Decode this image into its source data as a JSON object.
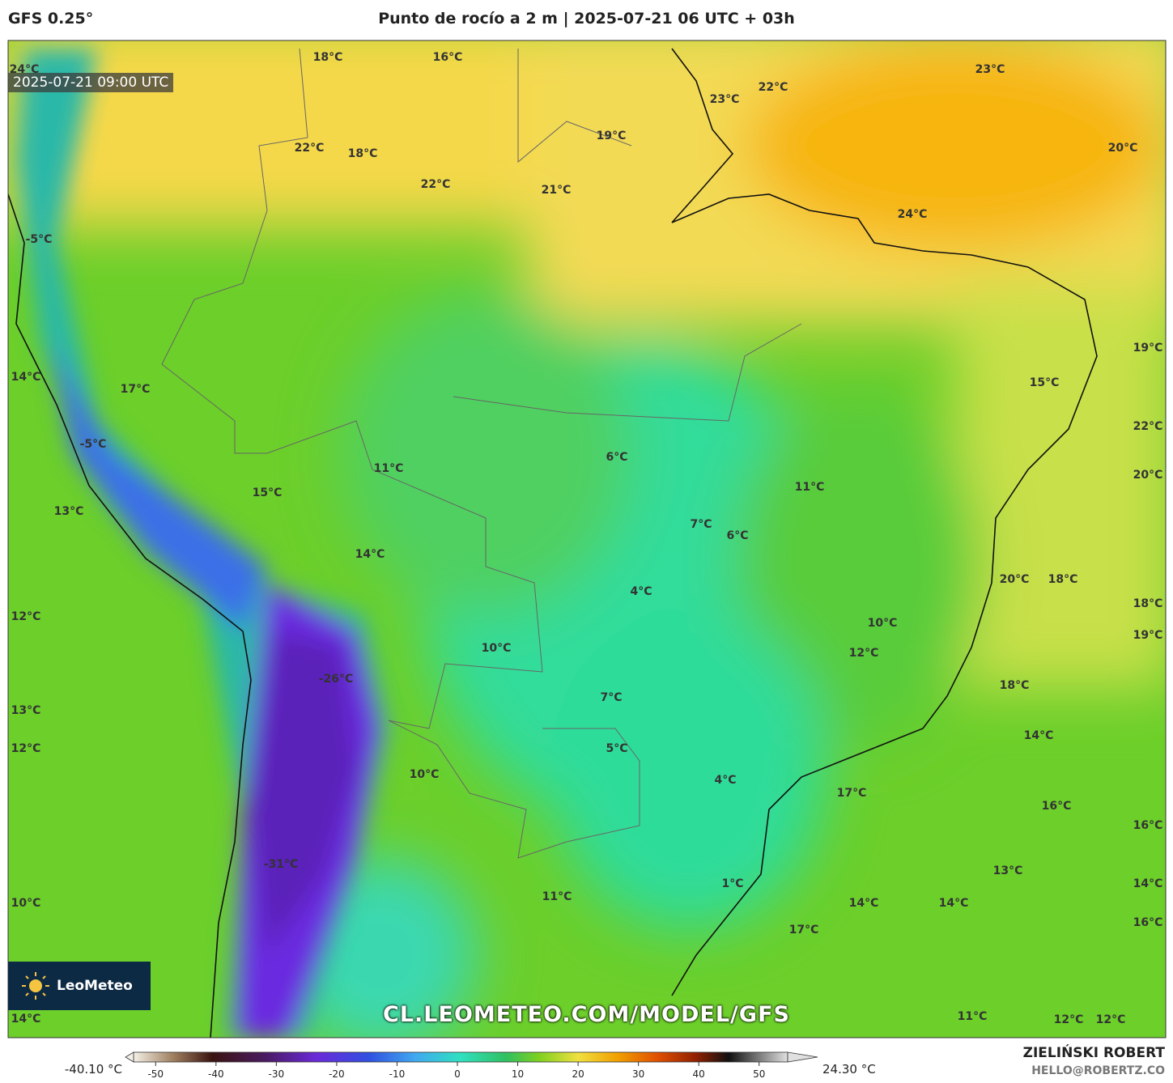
{
  "header": {
    "model": "GFS 0.25°",
    "title": "Punto de rocío a 2 m | 2025-07-21 06 UTC + 03h"
  },
  "timestamp": "2025-07-21 09:00 UTC",
  "logo": "LeoMeteo",
  "watermark": "CL.LEOMETEO.COM/MODEL/GFS",
  "map_labels": [
    "24°C",
    "18°C",
    "16°C",
    "23°C",
    "22°C",
    "23°C",
    "20°C",
    "19°C",
    "22°C",
    "18°C",
    "22°C",
    "21°C",
    "24°C",
    "-5°C",
    "19°C",
    "14°C",
    "17°C",
    "15°C",
    "22°C",
    "-5°C",
    "6°C",
    "11°C",
    "20°C",
    "11°C",
    "15°C",
    "13°C",
    "7°C",
    "6°C",
    "14°C",
    "4°C",
    "20°C",
    "18°C",
    "18°C",
    "12°C",
    "10°C",
    "19°C",
    "12°C",
    "10°C",
    "-26°C",
    "18°C",
    "7°C",
    "13°C",
    "14°C",
    "12°C",
    "5°C",
    "4°C",
    "10°C",
    "17°C",
    "16°C",
    "16°C",
    "-31°C",
    "13°C",
    "1°C",
    "14°C",
    "11°C",
    "10°C",
    "14°C",
    "14°C",
    "16°C",
    "17°C",
    "14°C",
    "11°C",
    "12°C",
    "12°C"
  ],
  "colorbar": {
    "min_label": "-40.10 °C",
    "max_label": "24.30 °C",
    "lim": [
      -55,
      55
    ],
    "ticks": [
      -50,
      -40,
      -30,
      -20,
      -10,
      0,
      10,
      20,
      30,
      40,
      50
    ]
  },
  "credits": {
    "author": "ZIELIŃSKI ROBERT",
    "email": "HELLO@ROBERTZ.CO"
  }
}
